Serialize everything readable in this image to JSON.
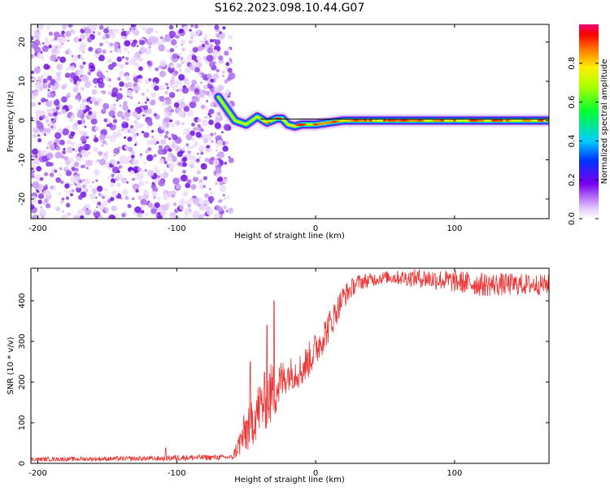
{
  "title": "S162.2023.098.10.44.G07",
  "chart_data": [
    {
      "type": "heatmap",
      "xlabel": "Height of straight line (km)",
      "ylabel": "Frequency (Hz)",
      "xlim": [
        -205,
        168
      ],
      "ylim": [
        -25,
        24.5
      ],
      "xticks": [
        -200,
        -100,
        0,
        100
      ],
      "yticks": [
        -20,
        -10,
        0,
        10,
        20
      ],
      "noise_region_x": [
        -205,
        -68
      ],
      "signal_ridge": [
        {
          "x": -70,
          "y": 6
        },
        {
          "x": -64,
          "y": 3
        },
        {
          "x": -58,
          "y": 0
        },
        {
          "x": -50,
          "y": -1
        },
        {
          "x": -42,
          "y": 1
        },
        {
          "x": -35,
          "y": -0.5
        },
        {
          "x": -28,
          "y": 0.5
        },
        {
          "x": -24,
          "y": 0.5
        },
        {
          "x": -20,
          "y": -1
        },
        {
          "x": -15,
          "y": -1.5
        },
        {
          "x": -10,
          "y": -1
        },
        {
          "x": 0,
          "y": -1
        },
        {
          "x": 10,
          "y": -0.5
        },
        {
          "x": 20,
          "y": 0
        },
        {
          "x": 60,
          "y": 0
        },
        {
          "x": 100,
          "y": 0
        },
        {
          "x": 168,
          "y": 0
        }
      ],
      "reference_line_y": 0.4,
      "colorbar": {
        "label": "Normalized spectral amplitude",
        "range": [
          0,
          1
        ],
        "ticks": [
          0.0,
          0.2,
          0.4,
          0.6,
          0.8
        ],
        "tick_labels": [
          "0.0",
          "0.2",
          "0.4",
          "0.6",
          "0.8"
        ]
      }
    },
    {
      "type": "line",
      "xlabel": "Height of straight line (km)",
      "ylabel": "SNR (10 * v/v)",
      "xlim": [
        -205,
        168
      ],
      "ylim": [
        0,
        480
      ],
      "xticks": [
        -200,
        -100,
        0,
        100
      ],
      "yticks": [
        0,
        100,
        200,
        300,
        400
      ],
      "color": "#ee3333",
      "envelope": [
        {
          "x": -205,
          "mean": 10,
          "noise": 5
        },
        {
          "x": -110,
          "mean": 12,
          "noise": 6
        },
        {
          "x": -100,
          "mean": 14,
          "noise": 8
        },
        {
          "x": -60,
          "mean": 15,
          "noise": 6
        },
        {
          "x": -50,
          "mean": 80,
          "noise": 60
        },
        {
          "x": -40,
          "mean": 140,
          "noise": 70
        },
        {
          "x": -32,
          "mean": 170,
          "noise": 80
        },
        {
          "x": -20,
          "mean": 220,
          "noise": 40
        },
        {
          "x": -10,
          "mean": 230,
          "noise": 45
        },
        {
          "x": 0,
          "mean": 280,
          "noise": 45
        },
        {
          "x": 10,
          "mean": 340,
          "noise": 40
        },
        {
          "x": 20,
          "mean": 410,
          "noise": 30
        },
        {
          "x": 30,
          "mean": 445,
          "noise": 20
        },
        {
          "x": 50,
          "mean": 458,
          "noise": 15
        },
        {
          "x": 80,
          "mean": 455,
          "noise": 25
        },
        {
          "x": 120,
          "mean": 440,
          "noise": 30
        },
        {
          "x": 168,
          "mean": 440,
          "noise": 25
        }
      ],
      "spikes": [
        {
          "x": -47,
          "y": 250
        },
        {
          "x": -35,
          "y": 340
        },
        {
          "x": -30,
          "y": 400
        },
        {
          "x": -108,
          "y": 38
        }
      ]
    }
  ]
}
